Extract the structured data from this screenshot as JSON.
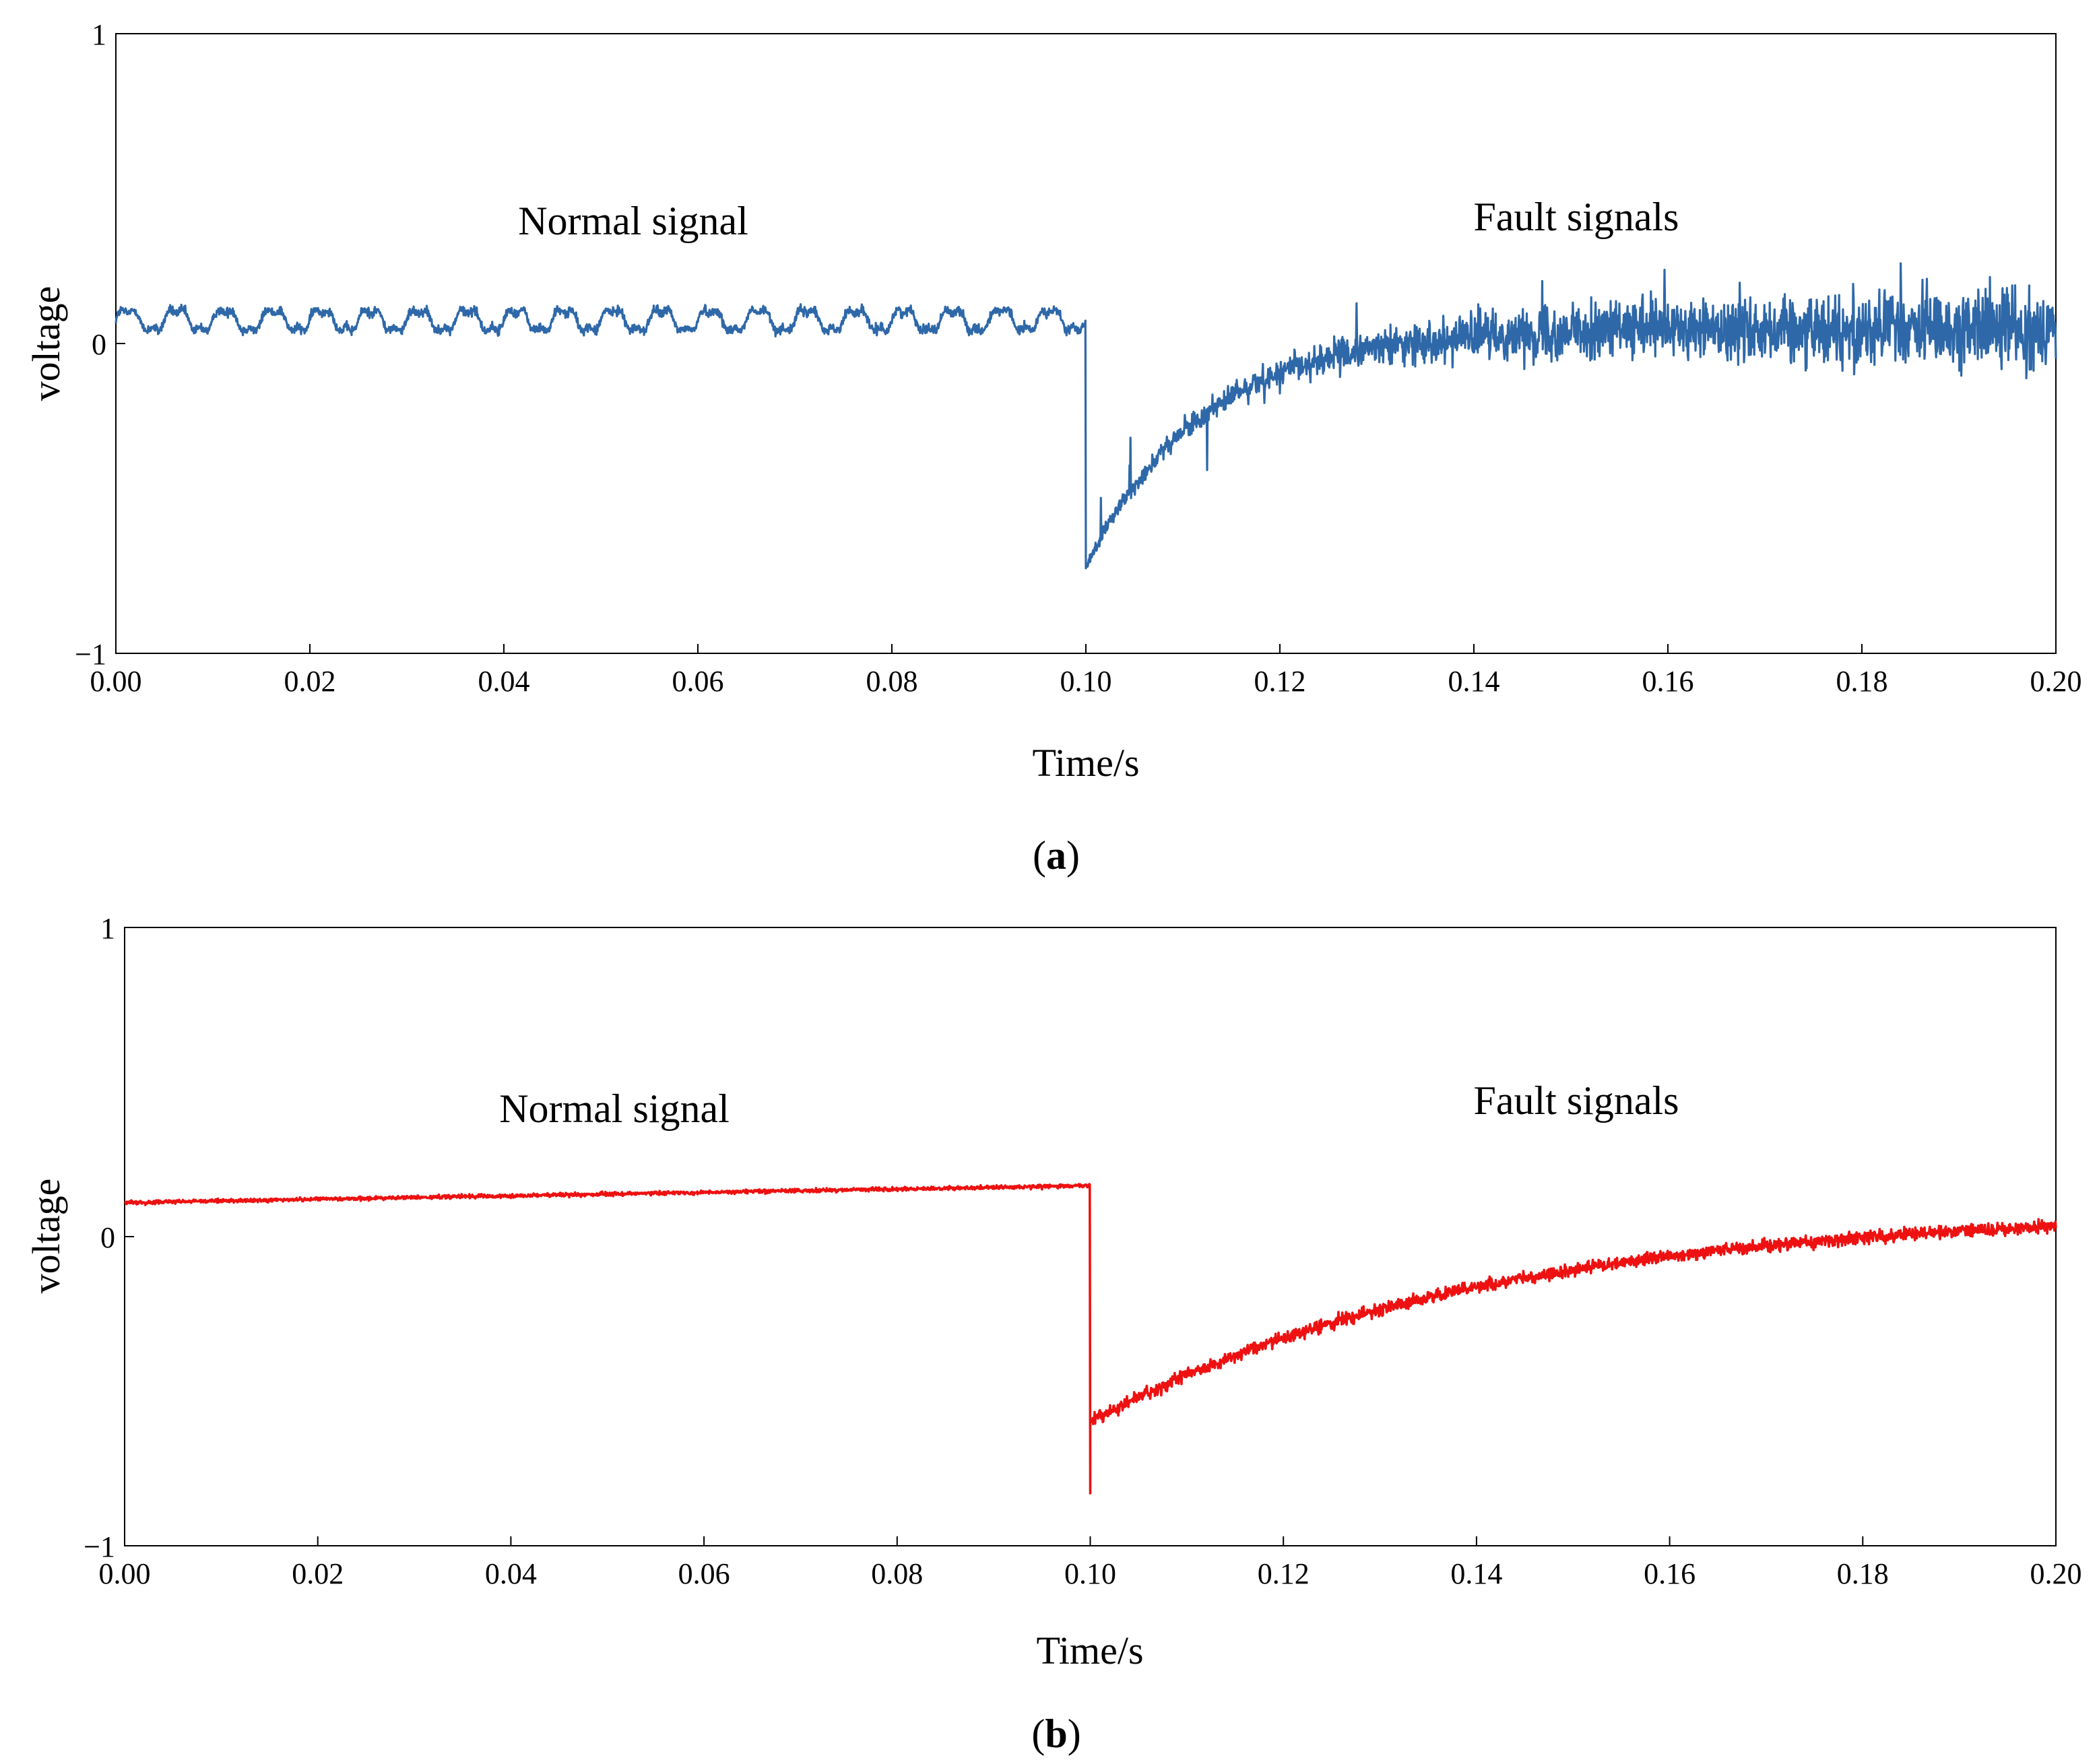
{
  "figure": {
    "panels": [
      {
        "caption_open": "(",
        "caption_letter": "a",
        "caption_close": ")"
      },
      {
        "caption_open": "(",
        "caption_letter": "b",
        "caption_close": ")"
      }
    ]
  },
  "chart_data": [
    {
      "type": "line",
      "panel": "a",
      "title": "",
      "xlabel": "Time/s",
      "ylabel": "voltage",
      "xlim": [
        0.0,
        0.2
      ],
      "ylim": [
        -1,
        1
      ],
      "xticks": [
        "0.00",
        "0.02",
        "0.04",
        "0.06",
        "0.08",
        "0.10",
        "0.12",
        "0.14",
        "0.16",
        "0.18",
        "0.20"
      ],
      "yticks": [
        "1",
        "0",
        "−1"
      ],
      "grid": false,
      "annotations": [
        {
          "text": "Normal signal",
          "x": 0.054,
          "y": 0.4
        },
        {
          "text": "Fault signals",
          "x": 0.151,
          "y": 0.41
        }
      ],
      "series": [
        {
          "name": "voltage",
          "color": "#2e68a8",
          "fault_time": 0.1,
          "normal": {
            "baseline": 0.075,
            "ripple_amplitude": 0.035,
            "ripple_period": 0.005,
            "noise": 0.015
          },
          "fault": {
            "start": -0.72,
            "recovery_tau": 0.012,
            "final": 0.05,
            "noise_start": 0.02,
            "noise_end": 0.12
          }
        }
      ]
    },
    {
      "type": "line",
      "panel": "b",
      "title": "",
      "xlabel": "Time/s",
      "ylabel": "voltage",
      "xlim": [
        0.0,
        0.2
      ],
      "ylim": [
        -1,
        1
      ],
      "xticks": [
        "0.00",
        "0.02",
        "0.04",
        "0.06",
        "0.08",
        "0.10",
        "0.12",
        "0.14",
        "0.16",
        "0.18",
        "0.20"
      ],
      "yticks": [
        "1",
        "0",
        "−1"
      ],
      "grid": false,
      "annotations": [
        {
          "text": "Normal signal",
          "x": 0.052,
          "y": 0.41
        },
        {
          "text": "Fault signals",
          "x": 0.151,
          "y": 0.43
        }
      ],
      "series": [
        {
          "name": "voltage",
          "color": "#ee1111",
          "fault_time": 0.1,
          "normal": {
            "start": 0.11,
            "end": 0.165,
            "noise": 0.006
          },
          "fault": {
            "spike": -0.83,
            "start": -0.6,
            "recovery_tau": 0.04,
            "final": 0.09,
            "noise": 0.02
          }
        }
      ]
    }
  ]
}
